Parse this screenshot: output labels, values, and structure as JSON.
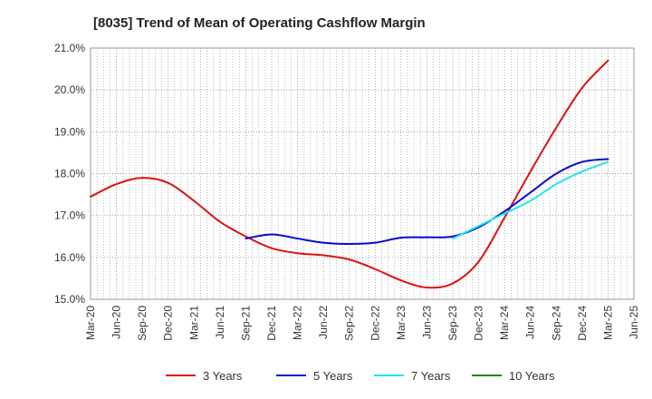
{
  "chart_data": {
    "type": "line",
    "title": "[8035]  Trend of Mean of Operating Cashflow Margin",
    "xlabel": "",
    "ylabel": "",
    "x": [
      "Mar-20",
      "Jun-20",
      "Sep-20",
      "Dec-20",
      "Mar-21",
      "Jun-21",
      "Sep-21",
      "Dec-21",
      "Mar-22",
      "Jun-22",
      "Sep-22",
      "Dec-22",
      "Mar-23",
      "Jun-23",
      "Sep-23",
      "Dec-23",
      "Mar-24",
      "Jun-24",
      "Sep-24",
      "Dec-24",
      "Mar-25",
      "Jun-25"
    ],
    "y_ticks": [
      "15.0%",
      "16.0%",
      "17.0%",
      "18.0%",
      "19.0%",
      "20.0%",
      "21.0%"
    ],
    "ylim": [
      15.0,
      21.0
    ],
    "grid": true,
    "legend_position": "bottom",
    "series": [
      {
        "name": "3 Years",
        "color": "#dd1111",
        "values": [
          17.45,
          17.75,
          17.9,
          17.78,
          17.35,
          16.85,
          16.5,
          16.22,
          16.1,
          16.05,
          15.95,
          15.72,
          15.45,
          15.28,
          15.38,
          15.9,
          16.95,
          18.05,
          19.1,
          20.05,
          20.7,
          null
        ]
      },
      {
        "name": "5 Years",
        "color": "#0a0ad0",
        "values": [
          null,
          null,
          null,
          null,
          null,
          null,
          16.45,
          16.55,
          16.45,
          16.35,
          16.32,
          16.35,
          16.47,
          16.48,
          16.5,
          16.72,
          17.1,
          17.55,
          18.0,
          18.28,
          18.35,
          null
        ]
      },
      {
        "name": "7 Years",
        "color": "#22e5f0",
        "values": [
          null,
          null,
          null,
          null,
          null,
          null,
          null,
          null,
          null,
          null,
          null,
          null,
          null,
          null,
          16.45,
          16.75,
          17.05,
          17.35,
          17.75,
          18.05,
          18.28,
          null
        ]
      },
      {
        "name": "10 Years",
        "color": "#118811",
        "values": [
          null,
          null,
          null,
          null,
          null,
          null,
          null,
          null,
          null,
          null,
          null,
          null,
          null,
          null,
          null,
          null,
          null,
          null,
          null,
          null,
          null,
          null
        ]
      }
    ]
  }
}
